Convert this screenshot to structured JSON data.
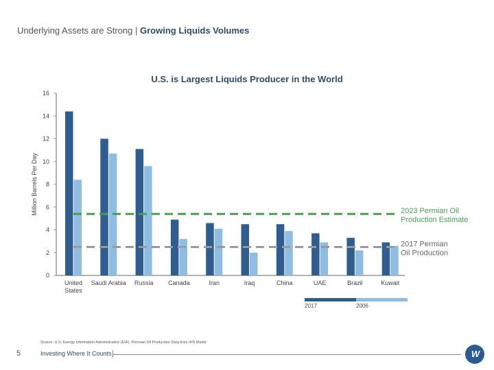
{
  "header": {
    "prefix": "Underlying Assets are Strong",
    "separator": "|",
    "highlight": "Growing Liquids Volumes"
  },
  "chart_data": {
    "type": "bar",
    "title": "U.S. is Largest Liquids Producer in the World",
    "xlabel": "",
    "ylabel": "Million Barrels Per Day",
    "ylim": [
      0,
      16
    ],
    "yticks": [
      0,
      2,
      4,
      6,
      8,
      10,
      12,
      14,
      16
    ],
    "grid": false,
    "categories": [
      "United States",
      "Saudi Arabia",
      "Russia",
      "Canada",
      "Iran",
      "Iraq",
      "China",
      "UAE",
      "Brazil",
      "Kuwait"
    ],
    "category_labels": [
      [
        "United",
        "States"
      ],
      [
        "Saudi Arabia"
      ],
      [
        "Russia"
      ],
      [
        "Canada"
      ],
      [
        "Iran"
      ],
      [
        "Iraq"
      ],
      [
        "China"
      ],
      [
        "UAE"
      ],
      [
        "Brazil"
      ],
      [
        "Kuwait"
      ]
    ],
    "series": [
      {
        "name": "2017",
        "color": "#2f5d8f",
        "values": [
          14.4,
          12.0,
          11.1,
          4.9,
          4.6,
          4.5,
          4.5,
          3.7,
          3.3,
          2.9
        ]
      },
      {
        "name": "2006",
        "color": "#8fbce3",
        "values": [
          8.4,
          10.7,
          9.6,
          3.2,
          4.1,
          2.0,
          3.9,
          2.9,
          2.2,
          2.6
        ]
      }
    ],
    "reference_lines": [
      {
        "name": "2023 Permian Oil Production Estimate",
        "value": 5.4,
        "color": "#4a9e4f",
        "label_lines": [
          "2023 Permian Oil",
          "Production Estimate"
        ]
      },
      {
        "name": "2017 Permian Oil Production",
        "value": 2.5,
        "color": "#9a9a9a",
        "label_lines": [
          "2017 Permian",
          "Oil Production"
        ],
        "label_color": "#666666"
      }
    ],
    "legend": {
      "placement": "bottom-right",
      "entries": [
        "2017",
        "2006"
      ]
    }
  },
  "footer": {
    "source": "Source: U.S. Energy Information Administration (EIA); Permian Oil Production Data from IHS Markit",
    "page_number": "5",
    "tagline": "Investing Where It Counts",
    "logo_text": "W"
  }
}
